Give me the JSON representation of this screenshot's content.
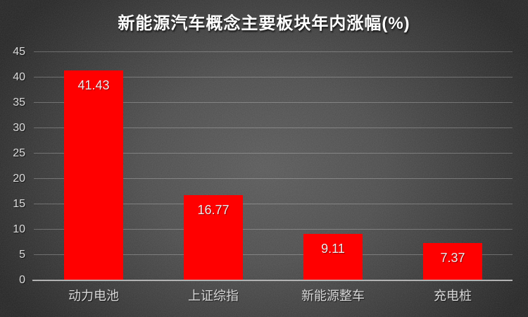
{
  "chart_data": {
    "type": "bar",
    "title": "新能源汽车概念主要板块年内涨幅(%)",
    "categories": [
      "动力电池",
      "上证综指",
      "新能源整车",
      "充电桩"
    ],
    "values": [
      41.43,
      16.77,
      9.11,
      7.37
    ],
    "value_labels": [
      "41.43",
      "16.77",
      "9.11",
      "7.37"
    ],
    "xlabel": "",
    "ylabel": "",
    "ylim": [
      0,
      45
    ],
    "ytick_step": 5,
    "yticks": [
      0,
      5,
      10,
      15,
      20,
      25,
      30,
      35,
      40,
      45
    ],
    "grid": "horizontal",
    "legend_position": "none",
    "bar_color": "#ff0000",
    "value_label_color": "#edeaea",
    "title_color": "#ffffff",
    "axis_text_color": "#d9d9d9",
    "gridline_color": "#ffffff42",
    "axis_line_color": "#b3b3b3",
    "background_center_color": "#595959",
    "background_edge_color": "#242424"
  }
}
